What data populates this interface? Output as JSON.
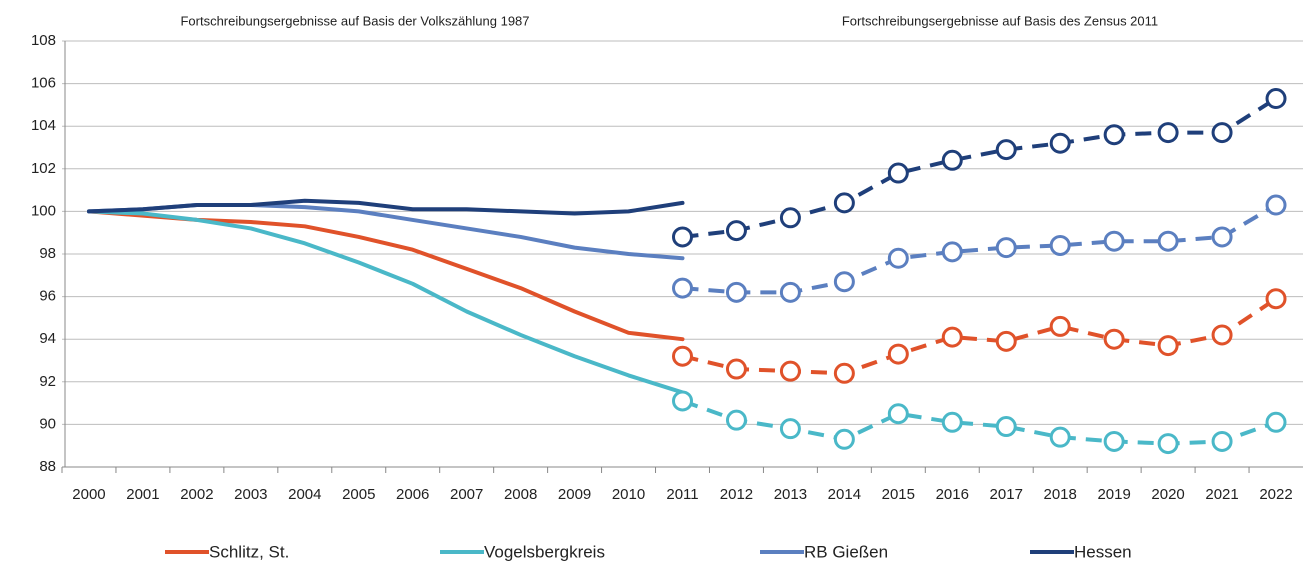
{
  "chart_data": {
    "type": "line",
    "annotations": [
      "Fortschreibungsergebnisse auf Basis der Volkszählung 1987",
      "Fortschreibungsergebnisse auf Basis des Zensus 2011"
    ],
    "categories": [
      "2000",
      "2001",
      "2002",
      "2003",
      "2004",
      "2005",
      "2006",
      "2007",
      "2008",
      "2009",
      "2010",
      "2011",
      "2012",
      "2013",
      "2014",
      "2015",
      "2016",
      "2017",
      "2018",
      "2019",
      "2020",
      "2021",
      "2022"
    ],
    "ylim": [
      88,
      108
    ],
    "yticks": [
      88,
      90,
      92,
      94,
      96,
      98,
      100,
      102,
      104,
      106,
      108
    ],
    "grid": true,
    "legend": "bottom",
    "series": [
      {
        "name": "Schlitz, St.",
        "color": "#e0522a",
        "values": [
          100,
          99.8,
          99.6,
          99.5,
          99.3,
          98.8,
          98.2,
          97.3,
          96.4,
          95.3,
          94.3,
          94.0,
          null,
          null,
          null,
          null,
          null,
          null,
          null,
          null,
          null,
          null,
          null
        ],
        "values_zensus": [
          null,
          null,
          null,
          null,
          null,
          null,
          null,
          null,
          null,
          null,
          null,
          93.2,
          92.6,
          92.5,
          92.4,
          93.3,
          94.1,
          93.9,
          94.6,
          94.0,
          93.7,
          94.2,
          95.9
        ]
      },
      {
        "name": "Vogelsbergkreis",
        "color": "#4ab8c8",
        "values": [
          100,
          99.9,
          99.6,
          99.2,
          98.5,
          97.6,
          96.6,
          95.3,
          94.2,
          93.2,
          92.3,
          91.5,
          null,
          null,
          null,
          null,
          null,
          null,
          null,
          null,
          null,
          null,
          null
        ],
        "values_zensus": [
          null,
          null,
          null,
          null,
          null,
          null,
          null,
          null,
          null,
          null,
          null,
          91.1,
          90.2,
          89.8,
          89.3,
          90.5,
          90.1,
          89.9,
          89.4,
          89.2,
          89.1,
          89.2,
          90.1
        ]
      },
      {
        "name": "RB Gießen",
        "color": "#5b7fc0",
        "values": [
          100,
          100.1,
          100.3,
          100.3,
          100.2,
          100.0,
          99.6,
          99.2,
          98.8,
          98.3,
          98.0,
          97.8,
          null,
          null,
          null,
          null,
          null,
          null,
          null,
          null,
          null,
          null,
          null
        ],
        "values_zensus": [
          null,
          null,
          null,
          null,
          null,
          null,
          null,
          null,
          null,
          null,
          null,
          96.4,
          96.2,
          96.2,
          96.7,
          97.8,
          98.1,
          98.3,
          98.4,
          98.6,
          98.6,
          98.8,
          100.3
        ]
      },
      {
        "name": "Hessen",
        "color": "#1f3f7a",
        "values": [
          100,
          100.1,
          100.3,
          100.3,
          100.5,
          100.4,
          100.1,
          100.1,
          100.0,
          99.9,
          100.0,
          100.4,
          null,
          null,
          null,
          null,
          null,
          null,
          null,
          null,
          null,
          null,
          null
        ],
        "values_zensus": [
          null,
          null,
          null,
          null,
          null,
          null,
          null,
          null,
          null,
          null,
          null,
          98.8,
          99.1,
          99.7,
          100.4,
          101.8,
          102.4,
          102.9,
          103.2,
          103.6,
          103.7,
          103.7,
          105.3
        ]
      }
    ]
  }
}
